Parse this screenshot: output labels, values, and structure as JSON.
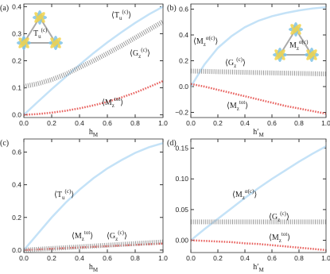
{
  "chart_data": [
    {
      "type": "line",
      "label": "(a)",
      "xlabel": [
        "h",
        "M"
      ],
      "x": [
        0,
        0.1,
        0.2,
        0.3,
        0.4,
        0.5,
        0.6,
        0.7,
        0.8,
        0.9,
        1.0
      ],
      "xlim": [
        0,
        1
      ],
      "xticks": [
        {
          "value": 0,
          "label": "0.0"
        },
        {
          "value": 0.2,
          "label": "0.2"
        },
        {
          "value": 0.4,
          "label": "0.4"
        },
        {
          "value": 0.6,
          "label": "0.6"
        },
        {
          "value": 0.8,
          "label": "0.8"
        },
        {
          "value": 1,
          "label": "1.0"
        }
      ],
      "ylim": [
        -0.01,
        0.41
      ],
      "yticks": [
        {
          "value": 0,
          "label": "0.0"
        },
        {
          "value": 0.1,
          "label": "0.1"
        },
        {
          "value": 0.2,
          "label": "0.2"
        },
        {
          "value": 0.3,
          "label": "0.3"
        },
        {
          "value": 0.4,
          "label": "0.4"
        }
      ],
      "inset_label": [
        "T",
        "u",
        "(c)"
      ],
      "series": [
        {
          "name": [
            "⟨T",
            "u",
            "(c)",
            "⟩"
          ],
          "color": "#c4e2f7",
          "style": "solid",
          "values": [
            0,
            0.048,
            0.095,
            0.14,
            0.185,
            0.228,
            0.268,
            0.305,
            0.34,
            0.372,
            0.4
          ]
        },
        {
          "name": [
            "⟨G",
            "z",
            "(c)",
            "⟩"
          ],
          "color": "#9a9a9a",
          "style": "hatched",
          "values": [
            0.105,
            0.115,
            0.13,
            0.15,
            0.175,
            0.2,
            0.227,
            0.255,
            0.285,
            0.315,
            0.345
          ]
        },
        {
          "name": [
            "⟨M",
            "z",
            "tot",
            "⟩"
          ],
          "color": "#e8625f",
          "style": "dotted",
          "values": [
            0,
            0.003,
            0.008,
            0.015,
            0.024,
            0.035,
            0.048,
            0.064,
            0.082,
            0.103,
            0.125
          ]
        }
      ]
    },
    {
      "type": "line",
      "label": "(b)",
      "xlabel": [
        "h′",
        "M"
      ],
      "x": [
        0,
        0.1,
        0.2,
        0.3,
        0.4,
        0.5,
        0.6,
        0.7,
        0.8,
        0.9,
        1.0
      ],
      "xlim": [
        0,
        1
      ],
      "xticks": [
        {
          "value": 0,
          "label": "0.0"
        },
        {
          "value": 0.2,
          "label": "0.2"
        },
        {
          "value": 0.4,
          "label": "0.4"
        },
        {
          "value": 0.6,
          "label": "0.6"
        },
        {
          "value": 0.8,
          "label": "0.8"
        },
        {
          "value": 1,
          "label": "1.0"
        }
      ],
      "ylim": [
        -0.24,
        0.64
      ],
      "yticks": [
        {
          "value": -0.2,
          "label": "−0.2"
        },
        {
          "value": 0,
          "label": "0.0"
        },
        {
          "value": 0.2,
          "label": "0.2"
        },
        {
          "value": 0.4,
          "label": "0.4"
        },
        {
          "value": 0.6,
          "label": "0.6"
        }
      ],
      "inset_label": [
        "M",
        "z",
        "α(c)"
      ],
      "series": [
        {
          "name": [
            "⟨M",
            "z",
            "α(c)",
            "⟩"
          ],
          "color": "#c4e2f7",
          "style": "solid",
          "values": [
            0,
            0.17,
            0.3,
            0.39,
            0.46,
            0.51,
            0.545,
            0.57,
            0.59,
            0.605,
            0.615
          ]
        },
        {
          "name": [
            "⟨G",
            "z",
            "(c)",
            "⟩"
          ],
          "color": "#9a9a9a",
          "style": "hatched",
          "values": [
            0.12,
            0.118,
            0.115,
            0.113,
            0.11,
            0.108,
            0.106,
            0.104,
            0.102,
            0.1,
            0.098
          ]
        },
        {
          "name": [
            "⟨M",
            "z",
            "tot",
            "⟩"
          ],
          "color": "#e8625f",
          "style": "dotted",
          "values": [
            0.02,
            0,
            -0.025,
            -0.05,
            -0.075,
            -0.1,
            -0.125,
            -0.15,
            -0.17,
            -0.19,
            -0.21
          ]
        }
      ]
    },
    {
      "type": "line",
      "label": "(c)",
      "xlabel": [
        "h",
        "M"
      ],
      "x": [
        0,
        0.1,
        0.2,
        0.3,
        0.4,
        0.5,
        0.6,
        0.7,
        0.8,
        0.9,
        1.0
      ],
      "xlim": [
        0,
        1
      ],
      "xticks": [
        {
          "value": 0,
          "label": "0.0"
        },
        {
          "value": 0.2,
          "label": "0.2"
        },
        {
          "value": 0.4,
          "label": "0.4"
        },
        {
          "value": 0.6,
          "label": "0.6"
        },
        {
          "value": 0.8,
          "label": "0.8"
        },
        {
          "value": 1,
          "label": "1.0"
        }
      ],
      "ylim": [
        -0.015,
        0.68
      ],
      "yticks": [
        {
          "value": 0,
          "label": "0.0"
        },
        {
          "value": 0.2,
          "label": "0.2"
        },
        {
          "value": 0.4,
          "label": "0.4"
        },
        {
          "value": 0.6,
          "label": "0.6"
        }
      ],
      "series": [
        {
          "name": [
            "⟨T",
            "u",
            "(c)",
            "⟩"
          ],
          "color": "#c4e2f7",
          "style": "solid",
          "values": [
            0,
            0.1,
            0.2,
            0.29,
            0.37,
            0.44,
            0.5,
            0.55,
            0.595,
            0.63,
            0.655
          ]
        },
        {
          "name": [
            "⟨M",
            "z",
            "tot",
            "⟩"
          ],
          "color": "#e8625f",
          "style": "dotted",
          "values": [
            0,
            0.004,
            0.008,
            0.012,
            0.016,
            0.02,
            0.024,
            0.028,
            0.032,
            0.036,
            0.04
          ]
        },
        {
          "name": [
            "⟨G",
            "z",
            "(c)",
            "⟩"
          ],
          "color": "#9a9a9a",
          "style": "hatched",
          "values": [
            0,
            0.005,
            0.01,
            0.015,
            0.02,
            0.025,
            0.03,
            0.035,
            0.04,
            0.045,
            0.05
          ]
        }
      ]
    },
    {
      "type": "line",
      "label": "(d)",
      "xlabel": [
        "h′",
        "M"
      ],
      "x": [
        0,
        0.1,
        0.2,
        0.3,
        0.4,
        0.5,
        0.6,
        0.7,
        0.8,
        0.9,
        1.0
      ],
      "xlim": [
        0,
        1
      ],
      "xticks": [
        {
          "value": 0,
          "label": "0.0"
        },
        {
          "value": 0.2,
          "label": "0.2"
        },
        {
          "value": 0.4,
          "label": "0.4"
        },
        {
          "value": 0.6,
          "label": "0.6"
        },
        {
          "value": 0.8,
          "label": "0.8"
        },
        {
          "value": 1,
          "label": "1.0"
        }
      ],
      "ylim": [
        -0.02,
        0.165
      ],
      "yticks": [
        {
          "value": 0,
          "label": "0.00"
        },
        {
          "value": 0.05,
          "label": "0.05"
        },
        {
          "value": 0.1,
          "label": "0.10"
        },
        {
          "value": 0.15,
          "label": "0.15"
        }
      ],
      "series": [
        {
          "name": [
            "⟨M",
            "z",
            "α(c)",
            "⟩"
          ],
          "color": "#c4e2f7",
          "style": "solid",
          "values": [
            0,
            0.018,
            0.035,
            0.052,
            0.069,
            0.085,
            0.1,
            0.114,
            0.128,
            0.141,
            0.153
          ]
        },
        {
          "name": [
            "⟨G",
            "z",
            "(c)",
            "⟩"
          ],
          "color": "#9a9a9a",
          "style": "hatched",
          "values": [
            0.03,
            0.03,
            0.03,
            0.03,
            0.03,
            0.03,
            0.03,
            0.03,
            0.03,
            0.03,
            0.03
          ]
        },
        {
          "name": [
            "⟨M",
            "z",
            "tot",
            "⟩"
          ],
          "color": "#e8625f",
          "style": "dotted",
          "values": [
            0,
            -0.001,
            -0.002,
            -0.003,
            -0.005,
            -0.006,
            -0.008,
            -0.01,
            -0.012,
            -0.014,
            -0.016
          ]
        }
      ]
    }
  ]
}
